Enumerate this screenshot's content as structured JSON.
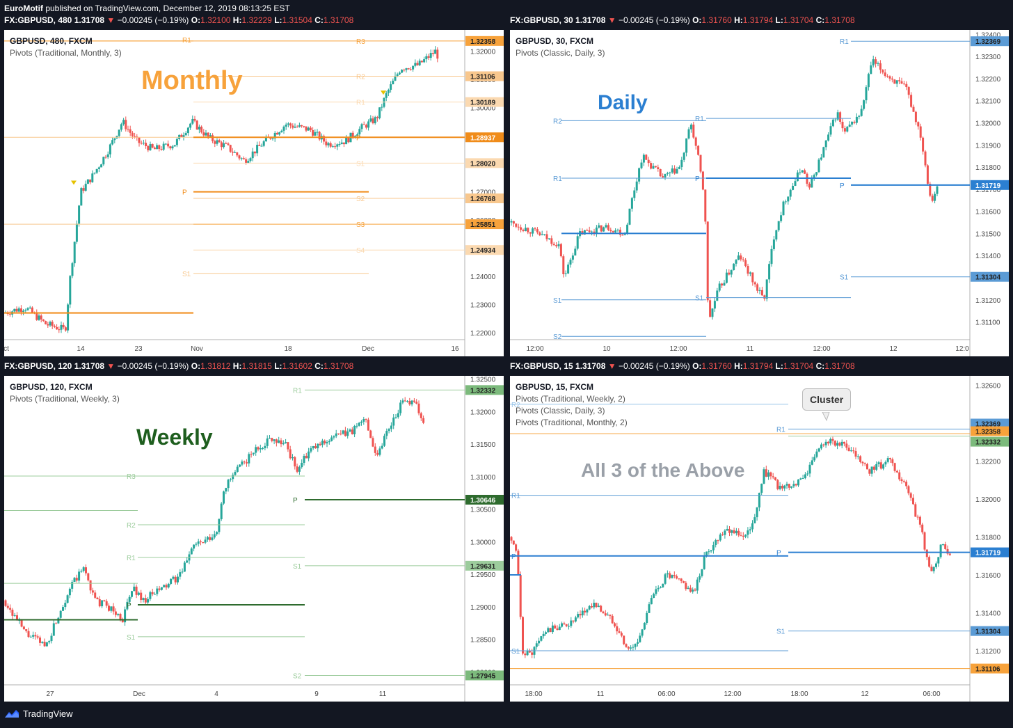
{
  "header": {
    "user": "EuroMotif",
    "published": " published on TradingView.com, December 12, 2019 08:13:25 EST"
  },
  "footer": {
    "brand": "TradingView"
  },
  "colors": {
    "up": "#26a69a",
    "down": "#ef5350",
    "bg": "#131722",
    "axis": "#cccccc"
  },
  "panels": [
    {
      "id": "p1",
      "quote": {
        "sym": "FX:GBPUSD, 480",
        "last": "1.31708",
        "chg": "−0.00245 (−0.19%)",
        "o": "1.32100",
        "h": "1.32229",
        "l": "1.31504",
        "c": "1.31708"
      },
      "title": "GBPUSD, 480, FXCM",
      "indicators": [
        "Pivots (Traditional, Monthly, 3)"
      ],
      "big_label": "Monthly",
      "big_color": "#f7a23b",
      "axis_ticks": [
        "1.32000",
        "1.31000",
        "1.30000",
        "1.29000",
        "1.28000",
        "1.27000",
        "1.26000",
        "1.25000",
        "1.24000",
        "1.23000",
        "1.22000"
      ],
      "x_ticks": [
        "ct",
        "14",
        "23",
        "Nov",
        "18",
        "Dec",
        "16"
      ],
      "price_tags": [
        {
          "text": "1.32358",
          "color": "#f7a23b"
        },
        {
          "text": "1.31106",
          "color": "#f8c78d"
        },
        {
          "text": "1.30189",
          "color": "#fbd9b0"
        },
        {
          "text": "1.28937",
          "color": "#f08c1a"
        },
        {
          "text": "1.28020",
          "color": "#fbd9b0"
        },
        {
          "text": "1.26768",
          "color": "#f8c78d"
        },
        {
          "text": "1.25851",
          "color": "#f7a23b"
        },
        {
          "text": "1.24934",
          "color": "#fbd9b0"
        }
      ],
      "pivot_labels": [
        "R1",
        "R3",
        "R2",
        "R1",
        "P",
        "S1",
        "P",
        "S2",
        "S3",
        "S4",
        "S1"
      ]
    },
    {
      "id": "p2",
      "quote": {
        "sym": "FX:GBPUSD, 30",
        "last": "1.31708",
        "chg": "−0.00245 (−0.19%)",
        "o": "1.31760",
        "h": "1.31794",
        "l": "1.31704",
        "c": "1.31708"
      },
      "title": "GBPUSD, 30, FXCM",
      "indicators": [
        "Pivots (Classic, Daily, 3)"
      ],
      "big_label": "Daily",
      "big_color": "#2b7fd1",
      "axis_ticks": [
        "1.32400",
        "1.32300",
        "1.32200",
        "1.32100",
        "1.32000",
        "1.31900",
        "1.31800",
        "1.31700",
        "1.31600",
        "1.31500",
        "1.31400",
        "1.31300",
        "1.31200",
        "1.31100"
      ],
      "x_ticks": [
        "12:00",
        "10",
        "12:00",
        "11",
        "12:00",
        "12",
        "12:0"
      ],
      "price_tags": [
        {
          "text": "1.32369",
          "color": "#5b9bd5"
        },
        {
          "text": "1.31719",
          "color": "#2b7fd1"
        },
        {
          "text": "1.31304",
          "color": "#5b9bd5"
        }
      ],
      "pivot_labels": [
        "R1",
        "R2",
        "R1",
        "R1",
        "P",
        "P",
        "S1",
        "S1",
        "S1",
        "S2"
      ]
    },
    {
      "id": "p3",
      "quote": {
        "sym": "FX:GBPUSD, 120",
        "last": "1.31708",
        "chg": "−0.00245 (−0.19%)",
        "o": "1.31812",
        "h": "1.31815",
        "l": "1.31602",
        "c": "1.31708"
      },
      "title": "GBPUSD, 120, FXCM",
      "indicators": [
        "Pivots (Traditional, Weekly, 3)"
      ],
      "big_label": "Weekly",
      "big_color": "#1e5e1e",
      "axis_ticks": [
        "1.32500",
        "1.32000",
        "1.31500",
        "1.31000",
        "1.30500",
        "1.30000",
        "1.29500",
        "1.29000",
        "1.28500",
        "1.28000"
      ],
      "x_ticks": [
        "27",
        "Dec",
        "4",
        "9",
        "11"
      ],
      "price_tags": [
        {
          "text": "1.32332",
          "color": "#7cba7c"
        },
        {
          "text": "1.30646",
          "color": "#2e6b2e"
        },
        {
          "text": "1.29631",
          "color": "#9ccc9c"
        },
        {
          "text": "1.27945",
          "color": "#7cba7c"
        }
      ],
      "pivot_labels": [
        "R1",
        "R3",
        "P",
        "R2",
        "R1",
        "S1",
        "P",
        "S1",
        "S2"
      ]
    },
    {
      "id": "p4",
      "quote": {
        "sym": "FX:GBPUSD, 15",
        "last": "1.31708",
        "chg": "−0.00245 (−0.19%)",
        "o": "1.31760",
        "h": "1.31794",
        "l": "1.31704",
        "c": "1.31708"
      },
      "title": "GBPUSD, 15, FXCM",
      "indicators": [
        "Pivots (Traditional, Weekly, 2)",
        "Pivots (Classic, Daily, 3)",
        "Pivots (Traditional, Monthly, 2)"
      ],
      "big_label": "All 3 of the Above",
      "big_color": "#9aa0a8",
      "callout": "Cluster",
      "axis_ticks": [
        "1.32600",
        "1.32400",
        "1.32200",
        "1.32000",
        "1.31800",
        "1.31600",
        "1.31400",
        "1.31200"
      ],
      "x_ticks": [
        "18:00",
        "11",
        "06:00",
        "12:00",
        "18:00",
        "12",
        "06:00"
      ],
      "price_tags": [
        {
          "text": "1.32369",
          "color": "#5b9bd5"
        },
        {
          "text": "1.32358",
          "color": "#f7a23b"
        },
        {
          "text": "1.32332",
          "color": "#7cba7c"
        },
        {
          "text": "1.31719",
          "color": "#2b7fd1"
        },
        {
          "text": "1.31304",
          "color": "#5b9bd5"
        },
        {
          "text": "1.31106",
          "color": "#f7a23b"
        }
      ],
      "pivot_labels": [
        "R2",
        "R1",
        "R1",
        "P",
        "P",
        "S1",
        "S1"
      ]
    }
  ],
  "chart_data": [
    {
      "type": "candlestick",
      "title": "GBPUSD, 480, FXCM",
      "indicator": "Pivots (Traditional, Monthly, 3)",
      "ylim": [
        1.2175,
        1.3275
      ],
      "pivots": {
        "R3": 1.32358,
        "R2": 1.31106,
        "R1": 1.30189,
        "P": 1.28937,
        "S1": 1.2802,
        "S2": 1.26768,
        "S3": 1.25851,
        "S4": 1.24934
      },
      "last": 1.31708
    },
    {
      "type": "candlestick",
      "title": "GBPUSD, 30, FXCM",
      "indicator": "Pivots (Classic, Daily, 3)",
      "ylim": [
        1.3102,
        1.3242
      ],
      "pivots": {
        "R1": 1.32369,
        "P": 1.31719,
        "S1": 1.31304
      },
      "last": 1.31708
    },
    {
      "type": "candlestick",
      "title": "GBPUSD, 120, FXCM",
      "indicator": "Pivots (Traditional, Weekly, 3)",
      "ylim": [
        1.278,
        1.3255
      ],
      "pivots": {
        "R1": 1.32332,
        "P": 1.30646,
        "S1": 1.29631,
        "S2": 1.27945
      },
      "last": 1.31708
    },
    {
      "type": "candlestick",
      "title": "GBPUSD, 15, FXCM",
      "indicators": [
        "Pivots (Traditional, Weekly, 2)",
        "Pivots (Classic, Daily, 3)",
        "Pivots (Traditional, Monthly, 2)"
      ],
      "ylim": [
        1.3102,
        1.3265
      ],
      "cluster": [
        1.32369,
        1.32358,
        1.32332
      ],
      "pivots": {
        "daily_R1": 1.32369,
        "monthly_R3": 1.32358,
        "weekly_R1": 1.32332,
        "daily_P": 1.31719,
        "daily_S1": 1.31304,
        "monthly_R2": 1.31106
      },
      "last": 1.31708
    }
  ]
}
